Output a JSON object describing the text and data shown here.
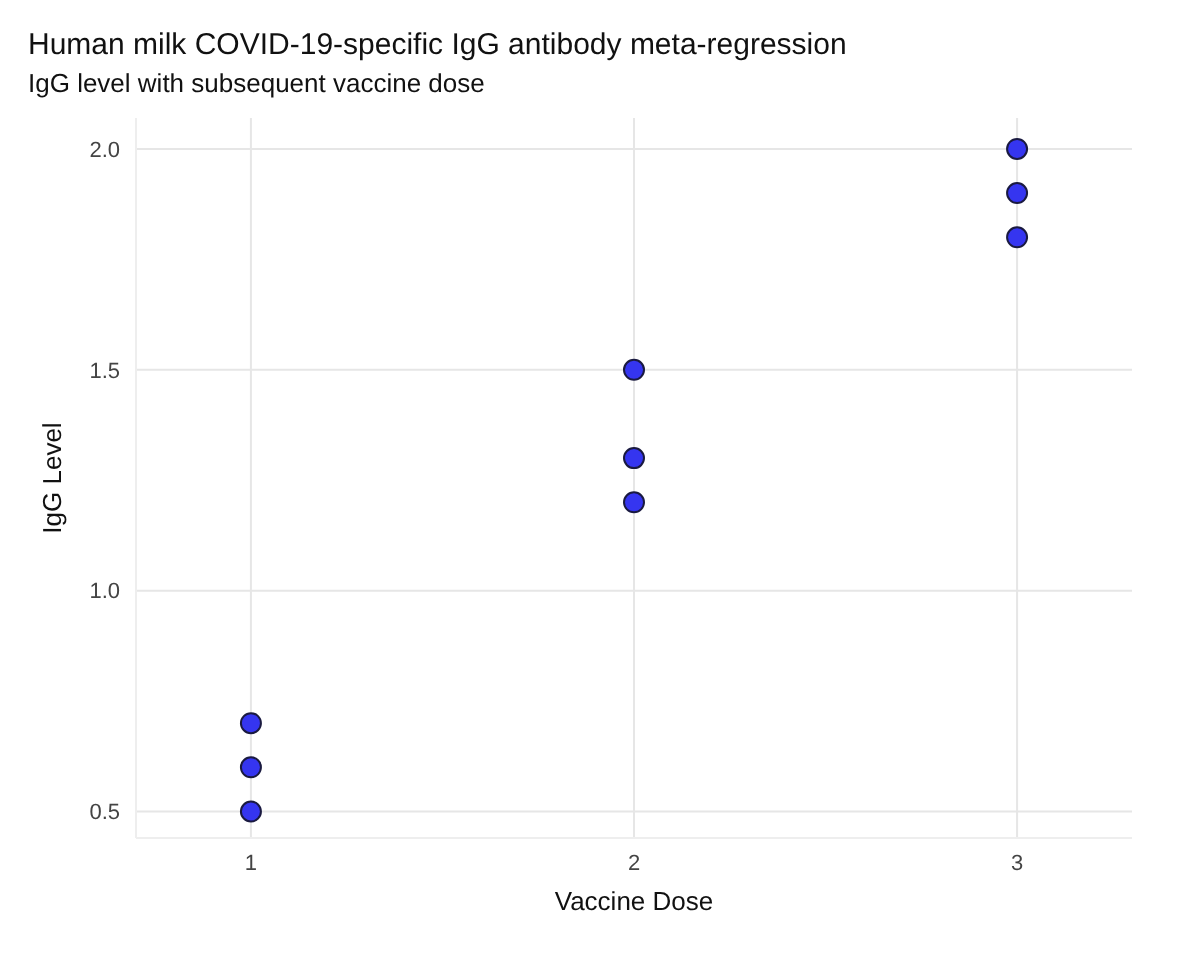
{
  "chart_data": {
    "type": "scatter",
    "title": "Human milk COVID-19-specific IgG antibody meta-regression",
    "subtitle": "IgG level with subsequent vaccine dose",
    "xlabel": "Vaccine Dose",
    "ylabel": "IgG Level",
    "series": [
      {
        "color": "#3535f0",
        "x": [
          1,
          1,
          1,
          2,
          2,
          2,
          3,
          3,
          3
        ],
        "values": [
          0.5,
          0.6,
          0.7,
          1.2,
          1.3,
          1.5,
          1.8,
          1.9,
          2.0
        ]
      }
    ],
    "xlim": [
      0.7,
      3.3
    ],
    "xticks": [
      1,
      2,
      3
    ],
    "ylim": [
      0.44,
      2.07
    ],
    "yticks": [
      {
        "value": 0.5,
        "label": "0.5"
      },
      {
        "value": 1,
        "label": "1.0"
      },
      {
        "value": 1.5,
        "label": "1.5"
      },
      {
        "value": 2,
        "label": "2.0"
      }
    ],
    "grid": true,
    "marker": "circle"
  }
}
